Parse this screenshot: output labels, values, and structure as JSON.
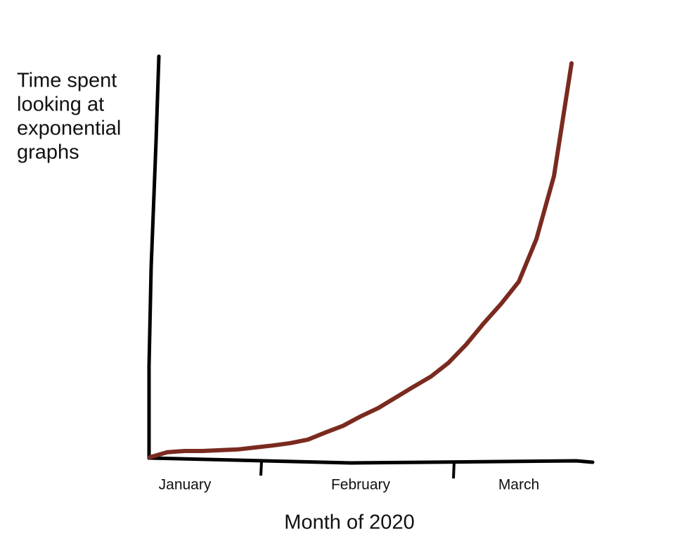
{
  "chart_data": {
    "type": "line",
    "ylabel": [
      "Time spent",
      "looking at",
      "exponential",
      "graphs"
    ],
    "xlabel": "Month of 2020",
    "categories": [
      null,
      null,
      "January",
      null,
      null,
      null,
      null,
      null,
      null,
      null,
      null,
      null,
      "February",
      null,
      null,
      null,
      null,
      null,
      null,
      null,
      null,
      "March",
      null,
      null,
      null
    ],
    "values": [
      0,
      1.3,
      1.6,
      1.6,
      1.8,
      2,
      2.5,
      3,
      3.6,
      4.5,
      6.3,
      8,
      10.4,
      12.5,
      15.2,
      17.9,
      20.5,
      24,
      28.6,
      34,
      39,
      44.6,
      55.4,
      71.4,
      100
    ],
    "color": "#7a2a1f",
    "ylim": [
      0,
      100
    ]
  }
}
